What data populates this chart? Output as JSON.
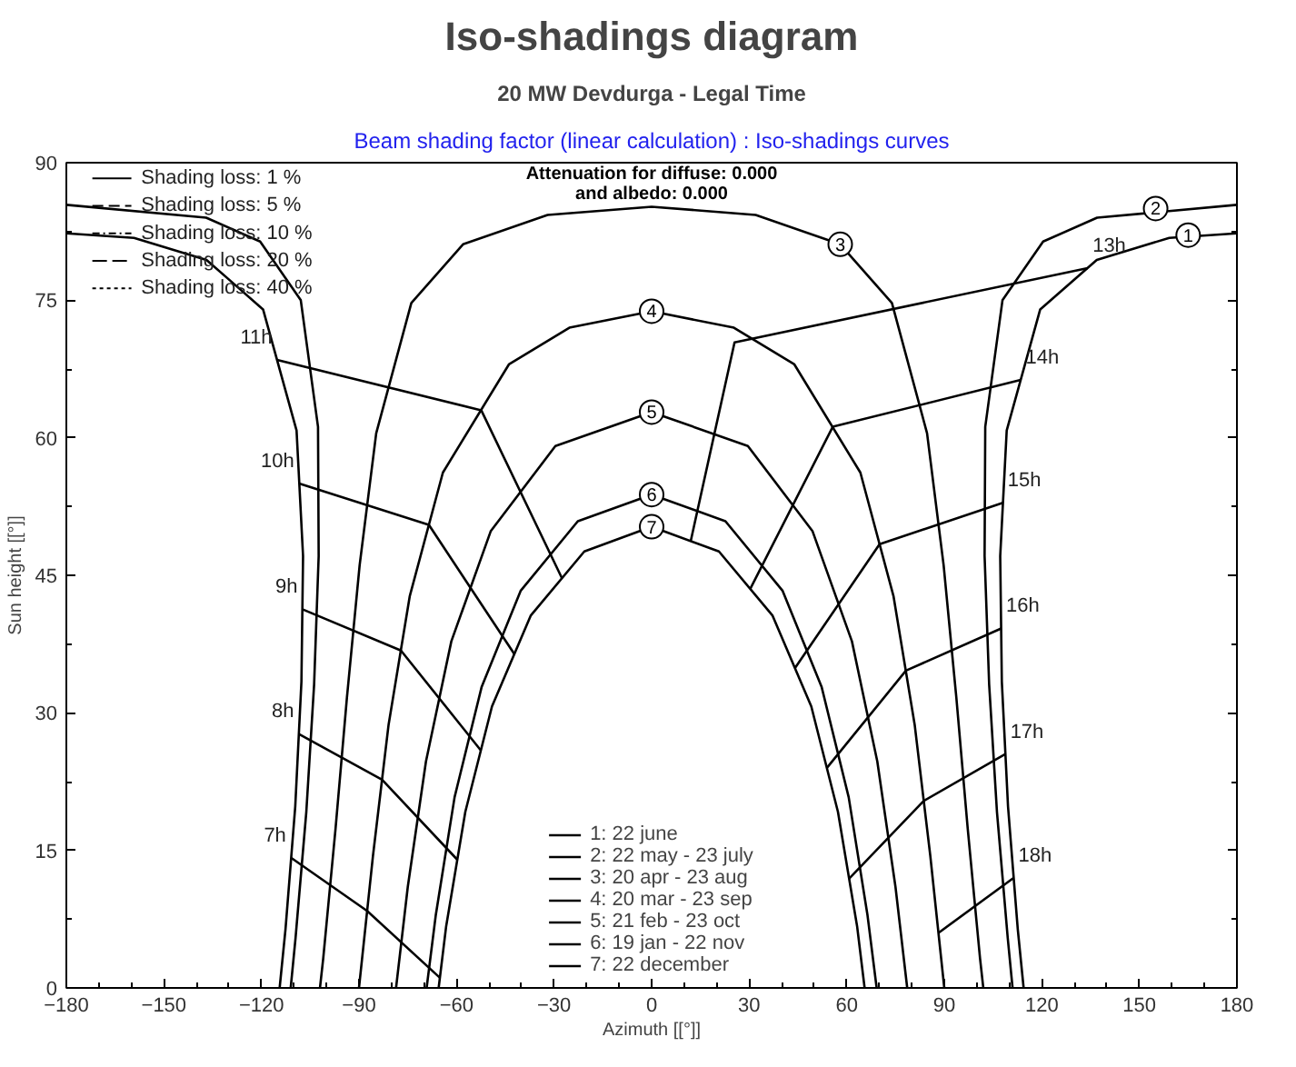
{
  "chart_data": {
    "type": "line",
    "title": "Iso-shadings diagram",
    "subtitle": "20 MW Devdurga - Legal Time",
    "xlabel": "Azimuth [[°]]",
    "ylabel": "Sun height [[°]]",
    "annotations": [
      "Beam shading factor (linear calculation) : Iso-shadings curves",
      "Attenuation for diffuse: 0.000\nand albedo: 0.000",
      "Shading loss: 1 %",
      "Shading loss: 5 %",
      "Shading loss: 10 %",
      "Shading loss: 20 %",
      "Shading loss: 40 %",
      {
        "text": "1",
        "x": 165,
        "y": 82.1
      },
      {
        "text": "2",
        "x": 155,
        "y": 85.0
      },
      {
        "text": "3",
        "x": 58,
        "y": 81.1
      },
      {
        "text": "4",
        "x": 0,
        "y": 73.8
      },
      {
        "text": "5",
        "x": 0,
        "y": 62.8
      },
      {
        "text": "6",
        "x": 0,
        "y": 53.8
      },
      {
        "text": "7",
        "x": 0,
        "y": 50.3
      }
    ],
    "xlim": [
      -180,
      180
    ],
    "ylim": [
      0,
      90
    ],
    "xticks": [
      -180,
      -150,
      -120,
      -90,
      -60,
      -30,
      0,
      30,
      60,
      90,
      120,
      150,
      180
    ],
    "yticks": [
      0,
      15,
      30,
      45,
      60,
      75,
      90
    ],
    "grid": false,
    "legend": "bottom",
    "marker": "none",
    "series": [
      {
        "name": "1: 22 june",
        "color": "#000000",
        "x": [
          -114.4,
          -112.6,
          -109.6,
          -107.7,
          -107.2,
          -109.2,
          -119.5,
          -136.9,
          -159.2,
          -180,
          0,
          180,
          159.2,
          136.9,
          119.5,
          109.2,
          107.2,
          107.7,
          109.6,
          112.6,
          114.4
        ],
        "values": [
          0,
          6.4,
          19.8,
          33.4,
          47.1,
          60.8,
          74.0,
          79.4,
          81.8,
          82.3,
          null,
          82.3,
          81.8,
          79.4,
          74.0,
          60.8,
          47.1,
          33.4,
          19.8,
          6.4,
          0
        ]
      },
      {
        "name": "2: 22 may - 23 july",
        "color": "#000000",
        "x": [
          -111.0,
          -109.5,
          -106.2,
          -103.8,
          -102.4,
          -102.6,
          -107.9,
          -120.4,
          -137,
          -180,
          0,
          180,
          137,
          120.4,
          107.9,
          102.6,
          102.4,
          103.8,
          106.2,
          109.5,
          111.0
        ],
        "values": [
          0,
          5.5,
          19.2,
          33.1,
          47.1,
          61.2,
          75.0,
          81.4,
          84.0,
          85.4,
          null,
          85.4,
          84.0,
          81.4,
          75.0,
          61.2,
          47.1,
          33.1,
          19.2,
          5.5,
          0
        ]
      },
      {
        "name": "3: 20 apr - 23 aug",
        "color": "#000000",
        "x": [
          -102.0,
          -101.0,
          -97.2,
          -93.7,
          -89.8,
          -84.7,
          -73.9,
          -58.0,
          -32.0,
          0,
          32.0,
          58.0,
          73.9,
          84.7,
          89.8,
          93.7,
          97.2,
          101.0,
          102.0
        ],
        "values": [
          0,
          3.2,
          17.4,
          31.7,
          46.1,
          60.5,
          74.7,
          81.1,
          84.3,
          85.2,
          84.3,
          81.1,
          74.7,
          60.5,
          46.1,
          31.7,
          17.4,
          3.2,
          0
        ]
      },
      {
        "name": "4: 20 mar - 23 sep",
        "color": "#000000",
        "x": [
          -90,
          -85.7,
          -80.9,
          -74.4,
          -64.2,
          -43.9,
          -25.3,
          0,
          25.3,
          43.9,
          64.2,
          74.4,
          80.9,
          85.7,
          90
        ],
        "values": [
          0,
          14.4,
          28.7,
          42.7,
          56.2,
          68.0,
          72.0,
          73.8,
          72.0,
          68.0,
          56.2,
          42.7,
          28.7,
          14.4,
          0
        ]
      },
      {
        "name": "5: 21 feb - 23 oct",
        "color": "#000000",
        "x": [
          -78.6,
          -75.0,
          -69.4,
          -61.6,
          -49.5,
          -29.6,
          0,
          29.6,
          49.5,
          61.6,
          69.4,
          75.0,
          78.6
        ],
        "values": [
          0,
          11.0,
          24.7,
          37.8,
          49.8,
          59.1,
          62.8,
          59.1,
          49.8,
          37.8,
          24.7,
          11.0,
          0
        ]
      },
      {
        "name": "6: 19 jan - 22 nov",
        "color": "#000000",
        "x": [
          -69.2,
          -66.4,
          -60.6,
          -52.3,
          -40.3,
          -22.7,
          0,
          22.7,
          40.3,
          52.3,
          60.6,
          66.4,
          69.2
        ],
        "values": [
          0,
          7.9,
          20.8,
          32.8,
          43.3,
          50.9,
          53.8,
          50.9,
          43.3,
          32.8,
          20.8,
          7.9,
          0
        ]
      },
      {
        "name": "7: 22 december",
        "color": "#000000",
        "x": [
          -65.5,
          -63.2,
          -57.3,
          -49.1,
          -37.2,
          -20.7,
          0,
          20.7,
          37.2,
          49.1,
          57.3,
          63.2,
          65.5
        ],
        "values": [
          0,
          6.7,
          19.2,
          30.7,
          40.6,
          47.6,
          50.3,
          47.6,
          40.6,
          30.7,
          19.2,
          6.7,
          0
        ]
      },
      {
        "name": "7h",
        "color": "#000000",
        "x": [
          -110.9,
          -87.5,
          -65.1
        ],
        "values": [
          14.2,
          8.4,
          1.1
        ]
      },
      {
        "name": "8h",
        "color": "#000000",
        "x": [
          -108.5,
          -82.9,
          -59.8
        ],
        "values": [
          27.7,
          22.7,
          14.0
        ]
      },
      {
        "name": "9h",
        "color": "#000000",
        "x": [
          -107.4,
          -77.1,
          -52.5
        ],
        "values": [
          41.3,
          36.8,
          25.9
        ]
      },
      {
        "name": "10h",
        "color": "#000000",
        "x": [
          -108.4,
          -68.5,
          -42.2
        ],
        "values": [
          55.0,
          50.5,
          36.4
        ]
      },
      {
        "name": "11h",
        "color": "#000000",
        "x": [
          -115.2,
          -52.4,
          -27.6
        ],
        "values": [
          68.5,
          63.0,
          44.7
        ]
      },
      {
        "name": "13h",
        "color": "#000000",
        "x": [
          134.1,
          25.5,
          12.0
        ],
        "values": [
          78.5,
          70.4,
          48.7
        ]
      },
      {
        "name": "14h",
        "color": "#000000",
        "x": [
          113.5,
          55.7,
          30.3
        ],
        "values": [
          66.3,
          61.2,
          43.5
        ]
      },
      {
        "name": "15h",
        "color": "#000000",
        "x": [
          108.0,
          70.1,
          44.1
        ],
        "values": [
          52.9,
          48.4,
          34.9
        ]
      },
      {
        "name": "16h",
        "color": "#000000",
        "x": [
          107.5,
          78.2,
          53.9
        ],
        "values": [
          39.2,
          34.6,
          24.0
        ]
      },
      {
        "name": "17h",
        "color": "#000000",
        "x": [
          108.8,
          83.7,
          60.7
        ],
        "values": [
          25.5,
          20.4,
          11.9
        ]
      },
      {
        "name": "18h",
        "color": "#000000",
        "x": [
          111.3,
          88.2
        ],
        "values": [
          12.0,
          6.0
        ]
      }
    ]
  }
}
